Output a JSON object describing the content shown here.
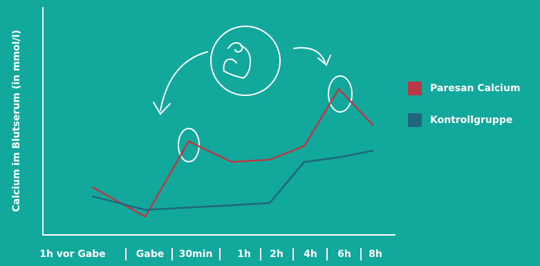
{
  "chart_data": {
    "type": "line",
    "y_axis_label": "Calcium im Blutserum (in mmol/l)",
    "categories": [
      "1h vor Gabe",
      "Gabe",
      "30min",
      "1h",
      "2h",
      "4h",
      "6h",
      "8h"
    ],
    "series": [
      {
        "name": "Paresan Calcium",
        "color": "#b83a46",
        "values": [
          21,
          8,
          41,
          32,
          33,
          39,
          64,
          48
        ]
      },
      {
        "name": "Kontrollgruppe",
        "color": "#22667e",
        "values": [
          17,
          11,
          12,
          13,
          14,
          32,
          34,
          37
        ]
      }
    ],
    "ylim": [
      0,
      100
    ]
  }
}
